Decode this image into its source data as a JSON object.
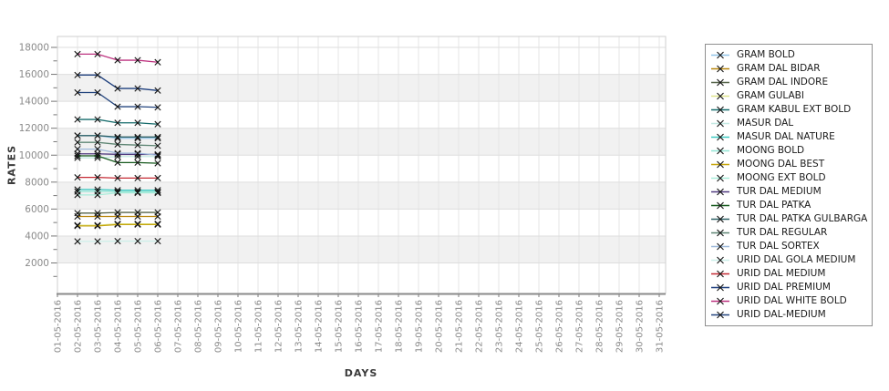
{
  "chart_data": {
    "type": "line",
    "title": "",
    "xlabel": "DAYS",
    "ylabel": "RATES",
    "legend_position": "right",
    "grid": true,
    "band_note": "alternating light-gray horizontal bands every 2000 units (2000-4000, 6000-8000, 10000-12000, 14000-16000)",
    "ylim": [
      0,
      18000
    ],
    "y_ticks": [
      2000,
      4000,
      6000,
      8000,
      10000,
      12000,
      14000,
      16000,
      18000
    ],
    "x_categories": [
      "01-05-2016",
      "02-05-2016",
      "03-05-2016",
      "04-05-2016",
      "05-05-2016",
      "06-05-2016",
      "07-05-2016",
      "08-05-2016",
      "09-05-2016",
      "10-05-2016",
      "11-05-2016",
      "12-05-2016",
      "13-05-2016",
      "14-05-2016",
      "15-05-2016",
      "16-05-2016",
      "17-05-2016",
      "18-05-2016",
      "19-05-2016",
      "20-05-2016",
      "21-05-2016",
      "22-05-2016",
      "23-05-2016",
      "24-05-2016",
      "25-05-2016",
      "26-05-2016",
      "27-05-2016",
      "28-05-2016",
      "29-05-2016",
      "30-05-2016",
      "31-05-2016"
    ],
    "data_days": [
      "02-05-2016",
      "03-05-2016",
      "04-05-2016",
      "05-05-2016",
      "06-05-2016"
    ],
    "marker": {
      "shape": "x",
      "color": "#111111"
    },
    "series": [
      {
        "name": "GRAM BOLD",
        "color": "#92C5E8",
        "values": [
          11450,
          11450,
          11250,
          11250,
          11250
        ]
      },
      {
        "name": "GRAM DAL BIDAR",
        "color": "#B8860B",
        "values": [
          5450,
          5450,
          5450,
          5450,
          5450
        ]
      },
      {
        "name": "GRAM DAL INDORE",
        "color": "#56644A",
        "values": [
          5700,
          5700,
          5750,
          5750,
          5750
        ]
      },
      {
        "name": "GRAM GULABI",
        "color": "#DFE48E",
        "values": [
          4800,
          4800,
          4900,
          4900,
          4900
        ]
      },
      {
        "name": "GRAM KABUL EXT BOLD",
        "color": "#156B6B",
        "values": [
          12650,
          12650,
          12400,
          12400,
          12300
        ]
      },
      {
        "name": "MASUR DAL",
        "color": "#C4E9E3",
        "values": [
          9800,
          9800,
          9900,
          9900,
          9900
        ]
      },
      {
        "name": "MASUR DAL NATURE",
        "color": "#3FC9C1",
        "values": [
          7450,
          7450,
          7400,
          7400,
          7400
        ]
      },
      {
        "name": "MOONG BOLD",
        "color": "#93E6D6",
        "values": [
          7300,
          7300,
          7280,
          7280,
          7280
        ]
      },
      {
        "name": "MOONG DAL BEST",
        "color": "#C6A50C",
        "values": [
          4750,
          4750,
          4850,
          4850,
          4850
        ]
      },
      {
        "name": "MOONG EXT BOLD",
        "color": "#A9EDDA",
        "values": [
          7050,
          7050,
          7200,
          7200,
          7200
        ]
      },
      {
        "name": "TUR DAL MEDIUM",
        "color": "#503A80",
        "values": [
          10100,
          10100,
          10060,
          10060,
          10060
        ]
      },
      {
        "name": "TUR DAL PATKA",
        "color": "#175A1E",
        "values": [
          9950,
          9950,
          9450,
          9450,
          9400
        ]
      },
      {
        "name": "TUR DAL PATKA GULBARGA",
        "color": "#2E6065",
        "values": [
          11450,
          11450,
          11350,
          11350,
          11350
        ]
      },
      {
        "name": "TUR DAL REGULAR",
        "color": "#5F8674",
        "values": [
          10950,
          10950,
          10800,
          10750,
          10700
        ]
      },
      {
        "name": "TUR DAL SORTEX",
        "color": "#9EB9DA",
        "values": [
          10450,
          10450,
          10150,
          10150,
          10000
        ]
      },
      {
        "name": "URID DAL GOLA MEDIUM",
        "color": "#CEF0EA",
        "values": [
          3600,
          3600,
          3620,
          3620,
          3620
        ]
      },
      {
        "name": "URID DAL MEDIUM",
        "color": "#C52B35",
        "values": [
          8350,
          8350,
          8300,
          8300,
          8300
        ]
      },
      {
        "name": "URID DAL PREMIUM",
        "color": "#1E3F7D",
        "values": [
          15950,
          15950,
          14950,
          14950,
          14800
        ]
      },
      {
        "name": "URID DAL WHITE BOLD",
        "color": "#BE3480",
        "values": [
          17500,
          17500,
          17050,
          17050,
          16900
        ]
      },
      {
        "name": "URID DAL-MEDIUM",
        "color": "#24457E",
        "values": [
          14650,
          14650,
          13600,
          13600,
          13550
        ]
      }
    ],
    "style_colors": {
      "band_gray": "#F1F1F1",
      "grid_line": "#E5E5E5",
      "axis_line": "#8A8A8A",
      "tick_text": "#8A8A8A",
      "axis_title_text": "#3A3A3A"
    }
  }
}
